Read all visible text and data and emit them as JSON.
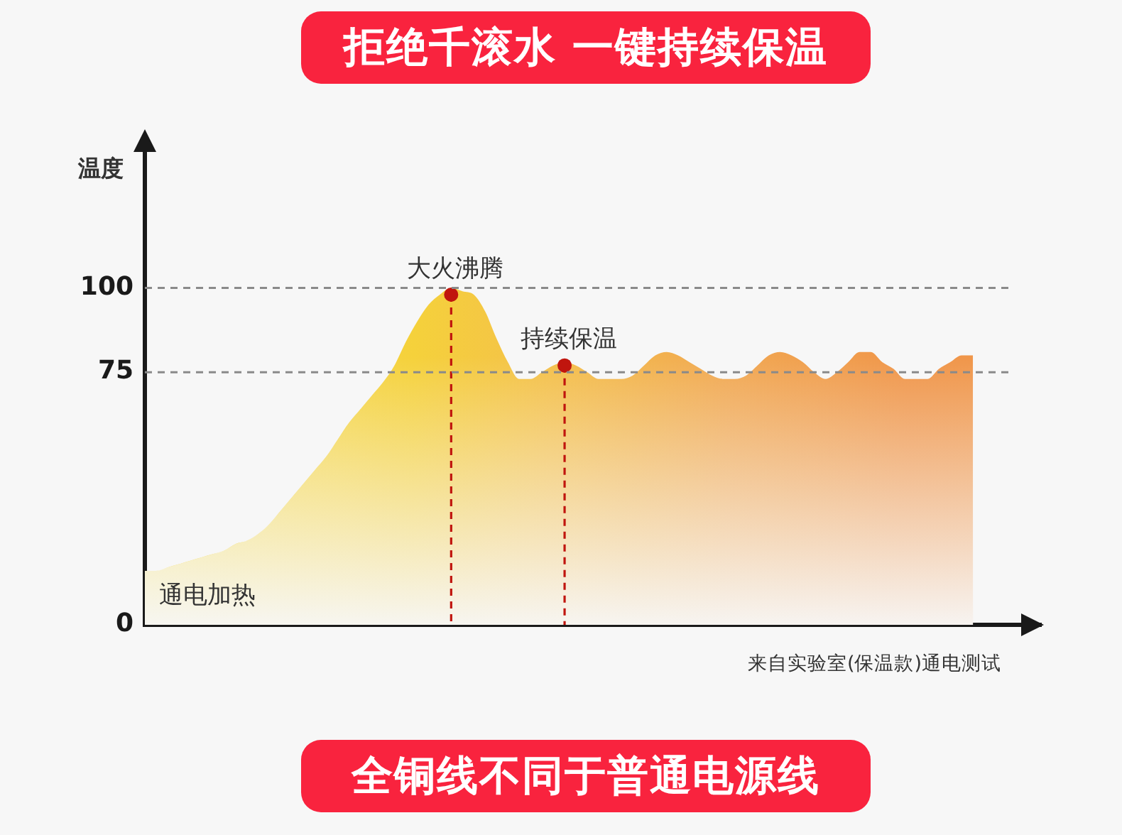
{
  "chart_data": {
    "type": "area",
    "title": "拒绝千滚水 一键持续保温",
    "subtitle": "全铜线不同于普通电源线",
    "ylabel": "温度",
    "categories": [
      null,
      null,
      null,
      null,
      null,
      null,
      null,
      null,
      null,
      null,
      null,
      null,
      null,
      null,
      null,
      null,
      null,
      null,
      null,
      null,
      null,
      null,
      null,
      null,
      null,
      null,
      null,
      null,
      null,
      null,
      null,
      null,
      null,
      null,
      null,
      null,
      null,
      null,
      null,
      null,
      null,
      null,
      null,
      null,
      null,
      null,
      null,
      null,
      null,
      null,
      null,
      null,
      null,
      null,
      null,
      null,
      null,
      null,
      null,
      null,
      null,
      null,
      null,
      null,
      null,
      null,
      null,
      null,
      null,
      null,
      null,
      null,
      null,
      null,
      null,
      null,
      null,
      null,
      null,
      null
    ],
    "series": [
      {
        "color": "#f0964a",
        "values": [
          16,
          16,
          17,
          18,
          19,
          20,
          21,
          22,
          24,
          25,
          27,
          30,
          34,
          38,
          42,
          46,
          50,
          55,
          60,
          64,
          68,
          72,
          77,
          84,
          90,
          95,
          98,
          100,
          99,
          98,
          93,
          85,
          78,
          73,
          73,
          75,
          77,
          78,
          77,
          75,
          73,
          73,
          73,
          74,
          77,
          80,
          81,
          80,
          78,
          76,
          74,
          73,
          73,
          74,
          77,
          80,
          81,
          80,
          78,
          75,
          73,
          75,
          78,
          81,
          81,
          78,
          76,
          73,
          73,
          73,
          76,
          78,
          80,
          80,
          null,
          null,
          null,
          null,
          null,
          null
        ]
      },
      {
        "type": "lollipop",
        "color": "#c0150e",
        "marker": "circle",
        "line_style": "dashed",
        "values": [
          null,
          null,
          null,
          null,
          null,
          null,
          null,
          null,
          null,
          null,
          null,
          null,
          null,
          null,
          null,
          null,
          null,
          null,
          null,
          null,
          null,
          null,
          null,
          null,
          null,
          null,
          null,
          98,
          null,
          null,
          null,
          null,
          null,
          null,
          null,
          null,
          null,
          77,
          null,
          null,
          null,
          null,
          null,
          null,
          null,
          null,
          null,
          null,
          null,
          null,
          null,
          null,
          null,
          null,
          null,
          null,
          null,
          null,
          null,
          null,
          null,
          null,
          null,
          null,
          null,
          null,
          null,
          null,
          null,
          null,
          null,
          null,
          null,
          null,
          null,
          null,
          null,
          null,
          null,
          null
        ]
      }
    ],
    "ylim": [
      0,
      145
    ],
    "yticks": [
      0,
      75,
      100
    ],
    "tick_labels": "y",
    "ref_lines": [
      {
        "axis": "y",
        "value": 100,
        "color": "#8a8a8a",
        "line_style": "dashed"
      },
      {
        "axis": "y",
        "value": 75,
        "color": "#8a8a8a",
        "line_style": "dashed"
      }
    ],
    "annotations": [
      {
        "text": "大火沸腾",
        "y": 98
      },
      {
        "text": "持续保温",
        "y": 77
      },
      "通电加热",
      "来自实验室(保温款)通电测试"
    ]
  }
}
